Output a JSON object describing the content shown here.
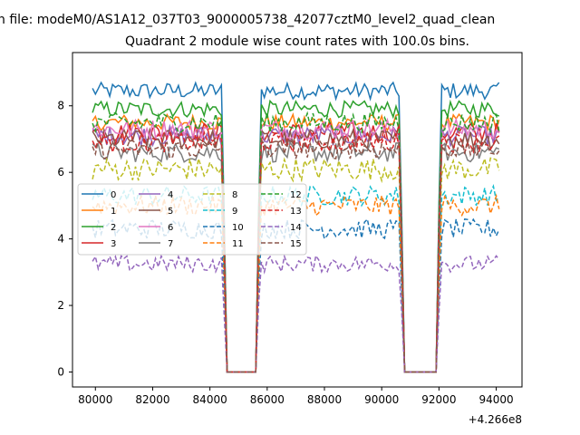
{
  "chart_data": {
    "type": "line",
    "figure_title": "n file: modeM0/AS1A12_037T03_9000005738_42077cztM0_level2_quad_clean",
    "title": "Quadrant 2 module wise count rates with 100.0s bins.",
    "xlabel": "",
    "ylabel": "",
    "x_offset_label": "+4.266e8",
    "xlim": [
      79200,
      94900
    ],
    "ylim": [
      -0.45,
      9.6
    ],
    "xticks": [
      80000,
      82000,
      84000,
      86000,
      88000,
      90000,
      92000,
      94000
    ],
    "xtick_labels": [
      "80000",
      "82000",
      "84000",
      "86000",
      "88000",
      "90000",
      "92000",
      "94000"
    ],
    "yticks": [
      0,
      2,
      4,
      6,
      8
    ],
    "ytick_labels": [
      "0",
      "2",
      "4",
      "6",
      "8"
    ],
    "grid": false,
    "legend_position": "center-left",
    "legend_columns": 4,
    "time_range": [
      79900,
      94150
    ],
    "bin_width": 100,
    "gap_intervals": [
      [
        84600,
        85600
      ],
      [
        90800,
        91900
      ]
    ],
    "series": [
      {
        "name": "0",
        "color": "#1f77b4",
        "dashed": false,
        "level": 8.45,
        "noise": 0.25
      },
      {
        "name": "1",
        "color": "#ff7f0e",
        "dashed": false,
        "level": 7.5,
        "noise": 0.25
      },
      {
        "name": "2",
        "color": "#2ca02c",
        "dashed": false,
        "level": 7.9,
        "noise": 0.25
      },
      {
        "name": "3",
        "color": "#d62728",
        "dashed": false,
        "level": 7.2,
        "noise": 0.3
      },
      {
        "name": "4",
        "color": "#9467bd",
        "dashed": false,
        "level": 7.1,
        "noise": 0.3
      },
      {
        "name": "5",
        "color": "#8c564b",
        "dashed": false,
        "level": 7.0,
        "noise": 0.3
      },
      {
        "name": "6",
        "color": "#e377c2",
        "dashed": false,
        "level": 7.3,
        "noise": 0.3
      },
      {
        "name": "7",
        "color": "#7f7f7f",
        "dashed": false,
        "level": 6.6,
        "noise": 0.3
      },
      {
        "name": "8",
        "color": "#bcbd22",
        "dashed": true,
        "level": 6.1,
        "noise": 0.35
      },
      {
        "name": "9",
        "color": "#17becf",
        "dashed": true,
        "level": 5.3,
        "noise": 0.3
      },
      {
        "name": "10",
        "color": "#1f77b4",
        "dashed": true,
        "level": 4.3,
        "noise": 0.3
      },
      {
        "name": "11",
        "color": "#ff7f0e",
        "dashed": true,
        "level": 5.0,
        "noise": 0.3
      },
      {
        "name": "12",
        "color": "#2ca02c",
        "dashed": true,
        "level": 7.5,
        "noise": 0.3
      },
      {
        "name": "13",
        "color": "#d62728",
        "dashed": true,
        "level": 6.9,
        "noise": 0.3
      },
      {
        "name": "14",
        "color": "#9467bd",
        "dashed": true,
        "level": 3.25,
        "noise": 0.25
      },
      {
        "name": "15",
        "color": "#8c564b",
        "dashed": true,
        "level": 6.7,
        "noise": 0.3
      }
    ]
  }
}
